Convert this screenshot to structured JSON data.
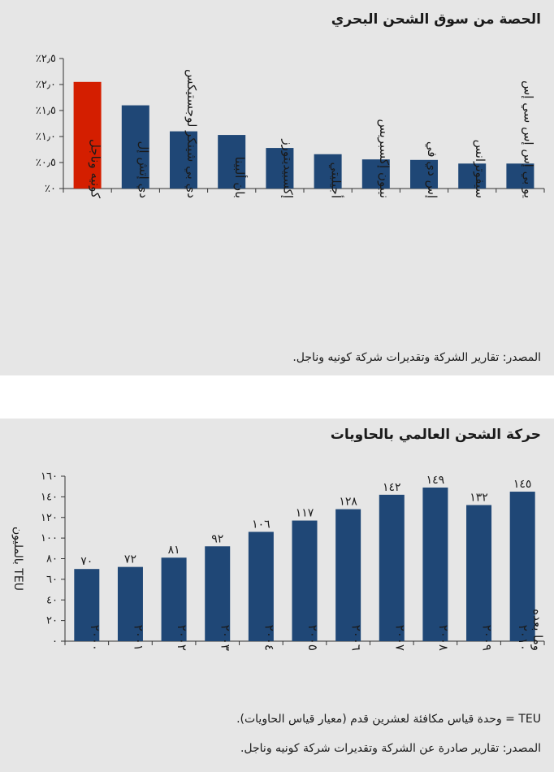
{
  "colors": {
    "bar": "#1f4776",
    "highlight": "#d41e00",
    "panel_bg": "#e6e6e6",
    "axis": "#333333"
  },
  "chart_data": [
    {
      "type": "bar",
      "title": "الحصة من سوق الشحن البحري",
      "source": "المصدر: تقارير الشركة وتقديرات شركة كونيه وناجل.",
      "categories": [
        "كونيه وناجل",
        "دي إتش إل",
        "دي بي شينكر لوجستيكس",
        "بان ألبينا",
        "إكسبيديتورز",
        "أجيليتي",
        "نيبون إكسبريس",
        "إس دي في",
        "سيفوترانس",
        "يو بي إس إس سي إس"
      ],
      "values": [
        2.05,
        1.6,
        1.1,
        1.03,
        0.78,
        0.66,
        0.56,
        0.55,
        0.48,
        0.48
      ],
      "highlight_index": 0,
      "ylim": [
        0,
        2.5
      ],
      "yticks": [
        0,
        0.5,
        1.0,
        1.5,
        2.0,
        2.5
      ],
      "ytick_labels": [
        "٪٠",
        "٪٠٫٥",
        "٪١٫٠",
        "٪١٫٥",
        "٪٢٫٠",
        "٪٢٫٥"
      ],
      "grid": false,
      "legend": "none"
    },
    {
      "type": "bar",
      "title": "حركة الشحن العالمي بالحاويات",
      "ylabel": "TEU بالمليون",
      "note": "TEU = وحدة قياس مكافئة لعشرين قدم (معيار قياس الحاويات).",
      "source": "المصدر: تقارير صادرة عن الشركة وتقديرات شركة كونيه وناجل.",
      "categories": [
        "٢٠٠٠",
        "٢٠٠١",
        "٢٠٠٢",
        "٢٠٠٣",
        "٢٠٠٤",
        "٢٠٠٥",
        "٢٠٠٦",
        "٢٠٠٧",
        "٢٠٠٨",
        "٢٠٠٩",
        "٢٠١٠ وما بعده"
      ],
      "values": [
        70,
        72,
        81,
        92,
        106,
        117,
        128,
        142,
        149,
        132,
        145
      ],
      "data_labels": [
        "٧٠",
        "٧٢",
        "٨١",
        "٩٢",
        "١٠٦",
        "١١٧",
        "١٢٨",
        "١٤٢",
        "١٤٩",
        "١٣٢",
        "١٤٥"
      ],
      "ylim": [
        0,
        160
      ],
      "yticks": [
        0,
        20,
        40,
        60,
        80,
        100,
        120,
        140,
        160
      ],
      "ytick_labels": [
        "٠",
        "٢٠",
        "٤٠",
        "٦٠",
        "٨٠",
        "١٠٠",
        "١٢٠",
        "١٤٠",
        "١٦٠"
      ],
      "grid": false,
      "legend": "none"
    }
  ]
}
